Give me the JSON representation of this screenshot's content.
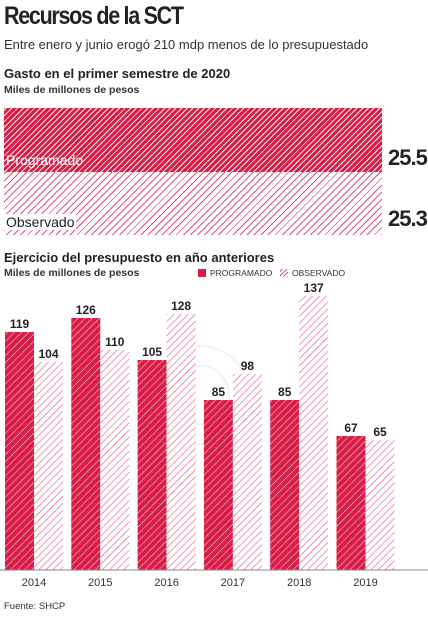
{
  "header": {
    "title": "Recursos de la SCT",
    "subtitle": "Entre enero y junio erogó 210 mdp menos de lo presupuestado"
  },
  "top_section": {
    "title": "Gasto en el primer semestre de 2020",
    "unit": "Miles de millones de pesos",
    "bars": [
      {
        "label": "Programado",
        "value": "25.5"
      },
      {
        "label": "Observado",
        "value": "25.3"
      }
    ]
  },
  "bottom_section": {
    "title": "Ejercicio del presupuesto en año anteriores",
    "unit": "Miles de millones de pesos",
    "legend": {
      "programado": "PROGRAMADO",
      "observado": "OBSERVADO"
    }
  },
  "source": "Fuente: SHCP",
  "colors": {
    "accent": "#d81d46",
    "hatch": "#e0547a"
  },
  "chart_data": [
    {
      "type": "bar",
      "title": "Gasto en el primer semestre de 2020",
      "unit": "Miles de millones de pesos",
      "orientation": "horizontal",
      "categories": [
        "Programado",
        "Observado"
      ],
      "values": [
        25.5,
        25.3
      ]
    },
    {
      "type": "bar",
      "title": "Ejercicio del presupuesto en año anteriores",
      "unit": "Miles de millones de pesos",
      "categories": [
        "2014",
        "2015",
        "2016",
        "2017",
        "2018",
        "2019"
      ],
      "series": [
        {
          "name": "PROGRAMADO",
          "values": [
            119,
            126,
            105,
            85,
            85,
            67
          ]
        },
        {
          "name": "OBSERVADO",
          "values": [
            104,
            110,
            128,
            98,
            137,
            65
          ]
        }
      ],
      "ylim": [
        0,
        137
      ],
      "legend": "top-right",
      "grid": false
    }
  ]
}
